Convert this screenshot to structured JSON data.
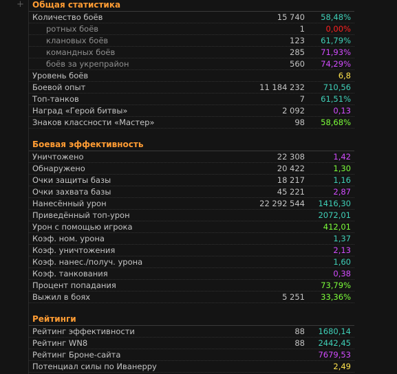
{
  "colors": {
    "teal": "#3fd0b8",
    "red": "#ff2020",
    "violet": "#d24cff",
    "yellow": "#ffe34d",
    "green": "#7cff3a",
    "header": "#ff9c33"
  },
  "expand_glyph": "+",
  "general": {
    "title": "Общая статистика",
    "rows": [
      {
        "label": "Количество боёв",
        "count": "15 740",
        "value": "58,48%",
        "color": "teal"
      },
      {
        "label": "ротных боёв",
        "count": "1",
        "value": "0,00%",
        "color": "red"
      },
      {
        "label": "клановых боёв",
        "count": "123",
        "value": "61,79%",
        "color": "teal"
      },
      {
        "label": "командных боёв",
        "count": "285",
        "value": "71,93%",
        "color": "violet"
      },
      {
        "label": "боёв за укрепрайон",
        "count": "560",
        "value": "74,29%",
        "color": "violet"
      },
      {
        "label": "Уровень боёв",
        "count": "",
        "value": "6,8",
        "color": "yellow"
      },
      {
        "label": "Боевой опыт",
        "count": "11 184 232",
        "value": "710,56",
        "color": "teal"
      },
      {
        "label": "Топ-танков",
        "count": "7",
        "value": "61,51%",
        "color": "teal"
      },
      {
        "label": "Наград «Герой битвы»",
        "count": "2 092",
        "value": "0,13",
        "color": "violet"
      },
      {
        "label": "Знаков классности «Мастер»",
        "count": "98",
        "value": "58,68%",
        "color": "green"
      }
    ]
  },
  "battle": {
    "title": "Боевая эффективность",
    "rows": [
      {
        "label": "Уничтожено",
        "count": "22 308",
        "value": "1,42",
        "color": "violet"
      },
      {
        "label": "Обнаружено",
        "count": "20 422",
        "value": "1,30",
        "color": "green"
      },
      {
        "label": "Очки защиты базы",
        "count": "18 217",
        "value": "1,16",
        "color": "teal"
      },
      {
        "label": "Очки захвата базы",
        "count": "45 221",
        "value": "2,87",
        "color": "violet"
      },
      {
        "label": "Нанесённый урон",
        "count": "22 292 544",
        "value": "1416,30",
        "color": "teal"
      },
      {
        "label": "Приведённый топ-урон",
        "count": "",
        "value": "2072,01",
        "color": "teal"
      },
      {
        "label": "Урон с помощью игрока",
        "count": "",
        "value": "412,01",
        "color": "green"
      },
      {
        "label": "Коэф. ном. урона",
        "count": "",
        "value": "1,37",
        "color": "teal"
      },
      {
        "label": "Коэф. уничтожения",
        "count": "",
        "value": "2,13",
        "color": "violet"
      },
      {
        "label": "Коэф. нанес./получ. урона",
        "count": "",
        "value": "1,60",
        "color": "teal"
      },
      {
        "label": "Коэф. танкования",
        "count": "",
        "value": "0,38",
        "color": "violet"
      },
      {
        "label": "Процент попадания",
        "count": "",
        "value": "73,79%",
        "color": "green"
      },
      {
        "label": "Выжил в боях",
        "count": "5 251",
        "value": "33,36%",
        "color": "green"
      }
    ]
  },
  "ratings": {
    "title": "Рейтинги",
    "rows": [
      {
        "label": "Рейтинг эффективности",
        "count": "88",
        "value": "1680,14",
        "color": "teal"
      },
      {
        "label": "Рейтинг WN8",
        "count": "88",
        "value": "2442,45",
        "color": "teal"
      },
      {
        "label": "Рейтинг Броне-сайта",
        "count": "",
        "value": "7679,53",
        "color": "violet"
      },
      {
        "label": "Потенциал силы по Иванерру",
        "count": "",
        "value": "2,49",
        "color": "yellow"
      }
    ]
  }
}
